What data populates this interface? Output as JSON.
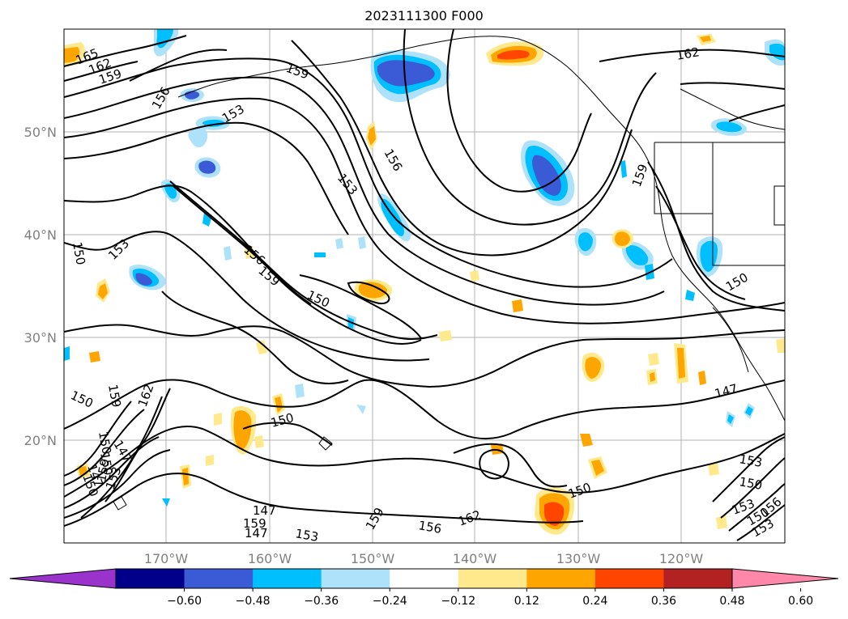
{
  "title": "2023111300 F000",
  "lat_labels": [
    "50°N",
    "40°N",
    "30°N",
    "20°N"
  ],
  "lon_labels": [
    "170°W",
    "160°W",
    "150°W",
    "140°W",
    "130°W",
    "120°W"
  ],
  "contour_labels": [
    "165",
    "162",
    "159",
    "159",
    "156",
    "153",
    "150",
    "153",
    "156",
    "159",
    "156",
    "153",
    "159",
    "162",
    "150",
    "150",
    "147",
    "150",
    "153",
    "150",
    "147",
    "150",
    "159",
    "162",
    "150",
    "159",
    "150",
    "147",
    "159",
    "156",
    "153",
    "147",
    "159",
    "162",
    "150",
    "153",
    "150",
    "147",
    "153",
    "150",
    "153",
    "156"
  ],
  "colorbar": {
    "colors": [
      "#9933cc",
      "#00008b",
      "#3b5bd6",
      "#00bfff",
      "#ade2fa",
      "#ffffff",
      "#ffe98c",
      "#ffa500",
      "#ff4500",
      "#b22222",
      "#ff88aa"
    ],
    "ticks": [
      "−0.60",
      "−0.48",
      "−0.36",
      "−0.24",
      "−0.12",
      "0.12",
      "0.24",
      "0.36",
      "0.48",
      "0.60"
    ]
  }
}
